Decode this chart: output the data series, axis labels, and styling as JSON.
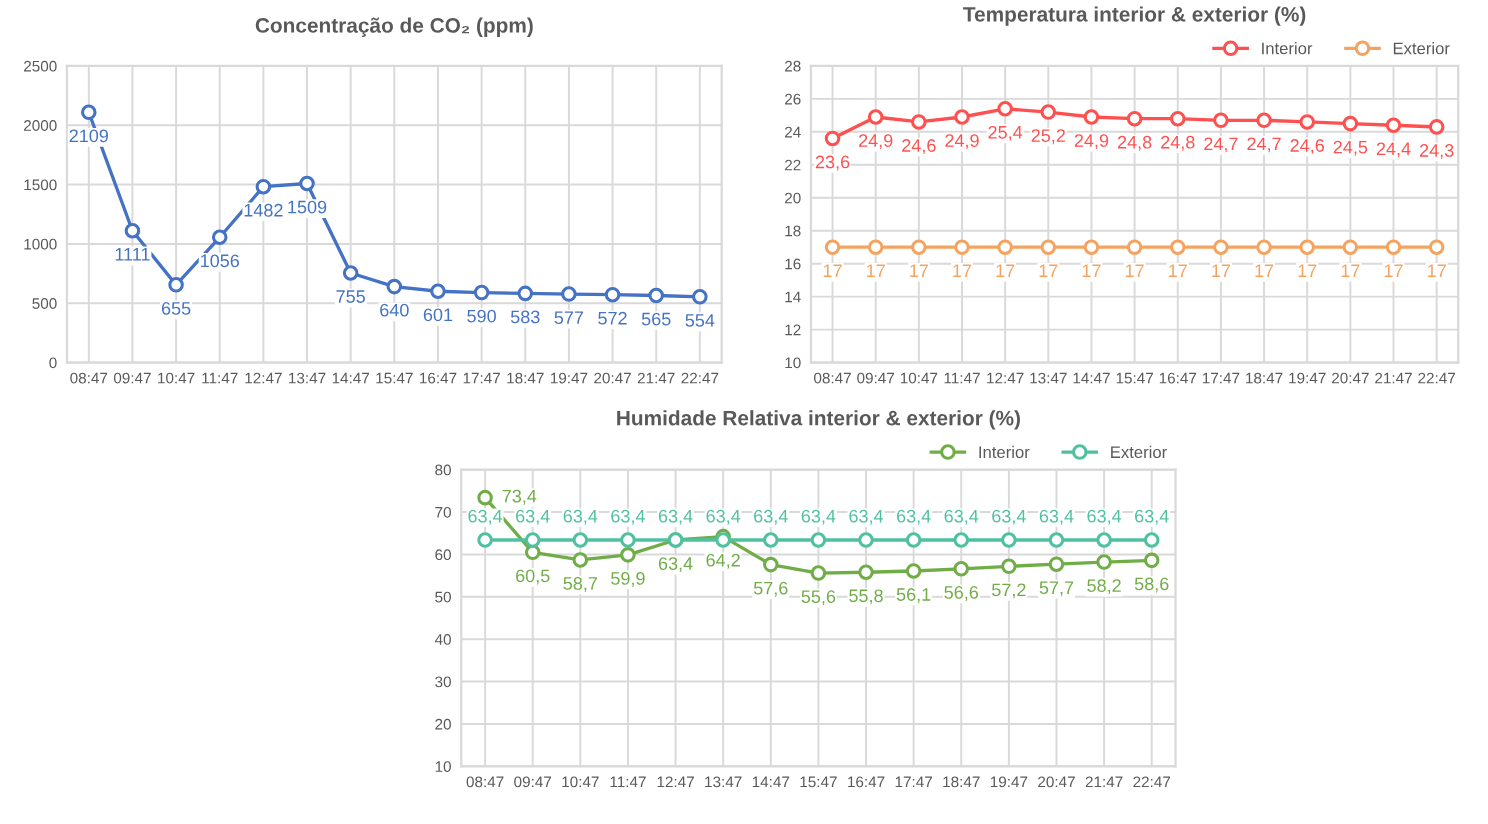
{
  "chart_data": [
    {
      "type": "line",
      "title": "Concentração de CO₂ (ppm)",
      "categories": [
        "08:47",
        "09:47",
        "10:47",
        "11:47",
        "12:47",
        "13:47",
        "14:47",
        "15:47",
        "16:47",
        "17:47",
        "18:47",
        "19:47",
        "20:47",
        "21:47",
        "22:47"
      ],
      "ylim": [
        0,
        2500
      ],
      "yticks": [
        0,
        500,
        1000,
        1500,
        2000,
        2500
      ],
      "grid": true,
      "marker": "circle",
      "line_style": "solid",
      "data_labels": true,
      "series": [
        {
          "color": "#4472c4",
          "values": [
            2109,
            1111,
            655,
            1056,
            1482,
            1509,
            755,
            640,
            601,
            590,
            583,
            577,
            572,
            565,
            554
          ]
        }
      ]
    },
    {
      "type": "line",
      "title": "Temperatura interior & exterior (%)",
      "categories": [
        "08:47",
        "09:47",
        "10:47",
        "11:47",
        "12:47",
        "13:47",
        "14:47",
        "15:47",
        "16:47",
        "17:47",
        "18:47",
        "19:47",
        "20:47",
        "21:47",
        "22:47"
      ],
      "ylim": [
        10,
        28
      ],
      "yticks": [
        10,
        12,
        14,
        16,
        18,
        20,
        22,
        24,
        26,
        28
      ],
      "grid": true,
      "marker": "circle",
      "line_style": "solid",
      "legend": "top right",
      "series": [
        {
          "name": "Interior",
          "color": "#ff5050",
          "values": [
            23.6,
            24.9,
            24.6,
            24.9,
            25.4,
            25.2,
            24.9,
            24.8,
            24.8,
            24.7,
            24.7,
            24.6,
            24.5,
            24.4,
            24.3
          ],
          "value_labels": [
            "23,6",
            "24,9",
            "24,6",
            "24,9",
            "25,4",
            "25,2",
            "24,9",
            "24,8",
            "24,8",
            "24,7",
            "24,7",
            "24,6",
            "24,5",
            "24,4",
            "24,3"
          ]
        },
        {
          "name": "Exterior",
          "color": "#f4a460",
          "values": [
            17,
            17,
            17,
            17,
            17,
            17,
            17,
            17,
            17,
            17,
            17,
            17,
            17,
            17,
            17
          ],
          "value_labels": [
            "17",
            "17",
            "17",
            "17",
            "17",
            "17",
            "17",
            "17",
            "17",
            "17",
            "17",
            "17",
            "17",
            "17",
            "17"
          ]
        }
      ]
    },
    {
      "type": "line",
      "title": "Humidade Relativa interior & exterior (%)",
      "categories": [
        "08:47",
        "09:47",
        "10:47",
        "11:47",
        "12:47",
        "13:47",
        "14:47",
        "15:47",
        "16:47",
        "17:47",
        "18:47",
        "19:47",
        "20:47",
        "21:47",
        "22:47"
      ],
      "ylim": [
        10,
        80
      ],
      "yticks": [
        10,
        20,
        30,
        40,
        50,
        60,
        70,
        80
      ],
      "grid": true,
      "marker": "circle",
      "line_style": "solid",
      "legend": "top right",
      "series": [
        {
          "name": "Interior",
          "color": "#70ad47",
          "values": [
            73.4,
            60.5,
            58.7,
            59.9,
            63.4,
            64.2,
            57.6,
            55.6,
            55.8,
            56.1,
            56.6,
            57.2,
            57.7,
            58.2,
            58.6
          ],
          "value_labels": [
            "73,4",
            "60,5",
            "58,7",
            "59,9",
            "63,4",
            "64,2",
            "57,6",
            "55,6",
            "55,8",
            "56,1",
            "56,6",
            "57,2",
            "57,7",
            "58,2",
            "58,6"
          ]
        },
        {
          "name": "Exterior",
          "color": "#4fc1a0",
          "values": [
            63.4,
            63.4,
            63.4,
            63.4,
            63.4,
            63.4,
            63.4,
            63.4,
            63.4,
            63.4,
            63.4,
            63.4,
            63.4,
            63.4,
            63.4
          ],
          "value_labels": [
            "63,4",
            "63,4",
            "63,4",
            "63,4",
            "63,4",
            "63,4",
            "63,4",
            "63,4",
            "63,4",
            "63,4",
            "63,4",
            "63,4",
            "63,4",
            "63,4",
            "63,4"
          ]
        }
      ]
    }
  ]
}
